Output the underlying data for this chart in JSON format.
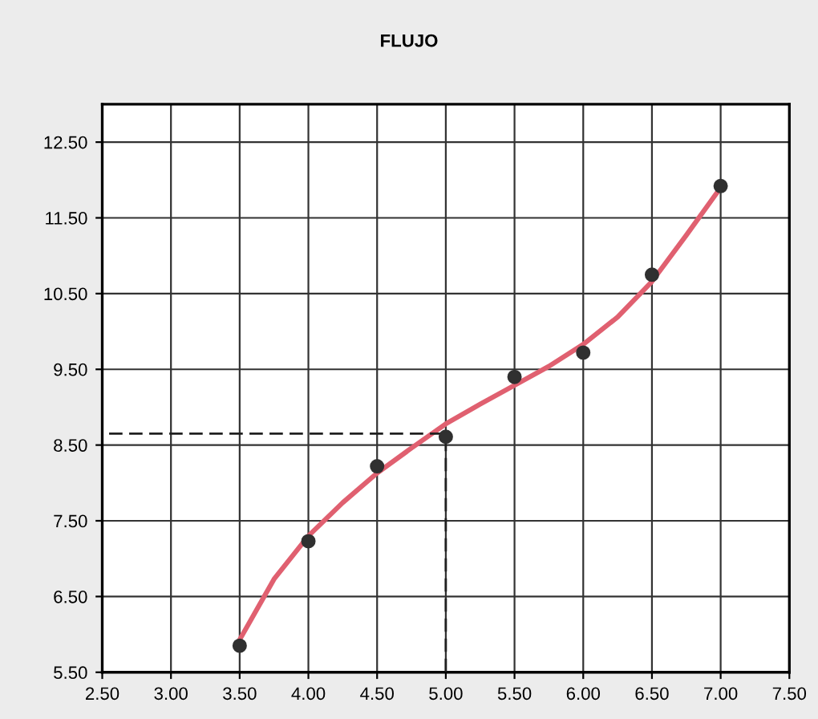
{
  "chart_data": {
    "type": "scatter",
    "title": "FLUJO",
    "xlim": [
      2.5,
      7.5
    ],
    "ylim": [
      5.5,
      13.0
    ],
    "xticks": [
      {
        "value": 2.5,
        "label": "2.50"
      },
      {
        "value": 3.0,
        "label": "3.00"
      },
      {
        "value": 3.5,
        "label": "3.50"
      },
      {
        "value": 4.0,
        "label": "4.00"
      },
      {
        "value": 4.5,
        "label": "4.50"
      },
      {
        "value": 5.0,
        "label": "5.00"
      },
      {
        "value": 5.5,
        "label": "5.50"
      },
      {
        "value": 6.0,
        "label": "6.00"
      },
      {
        "value": 6.5,
        "label": "6.50"
      },
      {
        "value": 7.0,
        "label": "7.00"
      },
      {
        "value": 7.5,
        "label": "7.50"
      }
    ],
    "yticks": [
      {
        "value": 5.5,
        "label": "5.50"
      },
      {
        "value": 6.5,
        "label": "6.50"
      },
      {
        "value": 7.5,
        "label": "7.50"
      },
      {
        "value": 8.5,
        "label": "8.50"
      },
      {
        "value": 9.5,
        "label": "9.50"
      },
      {
        "value": 10.5,
        "label": "10.50"
      },
      {
        "value": 11.5,
        "label": "11.50"
      },
      {
        "value": 12.5,
        "label": "12.50"
      }
    ],
    "grid": true,
    "legend": false,
    "series": [
      {
        "type": "line",
        "color": "#e06070",
        "line_style": "solid",
        "marker": "none",
        "x": [
          3.5,
          3.75,
          4.0,
          4.25,
          4.5,
          4.75,
          5.0,
          5.25,
          5.5,
          5.75,
          6.0,
          6.25,
          6.5,
          6.75,
          7.0
        ],
        "values": [
          5.93,
          6.73,
          7.3,
          7.74,
          8.13,
          8.46,
          8.78,
          9.04,
          9.29,
          9.54,
          9.83,
          10.19,
          10.66,
          11.27,
          11.9
        ]
      },
      {
        "type": "line",
        "color": "#202020",
        "line_style": "dashed",
        "marker": "none",
        "x": [
          2.55,
          5.0,
          5.0
        ],
        "values": [
          8.65,
          8.65,
          5.5
        ]
      },
      {
        "color": "#303030",
        "marker": "circle",
        "x": [
          3.5,
          4.0,
          4.5,
          5.0,
          5.5,
          6.0,
          6.5,
          7.0
        ],
        "values": [
          5.85,
          7.23,
          8.22,
          8.61,
          9.4,
          9.72,
          10.75,
          11.92
        ]
      }
    ]
  }
}
